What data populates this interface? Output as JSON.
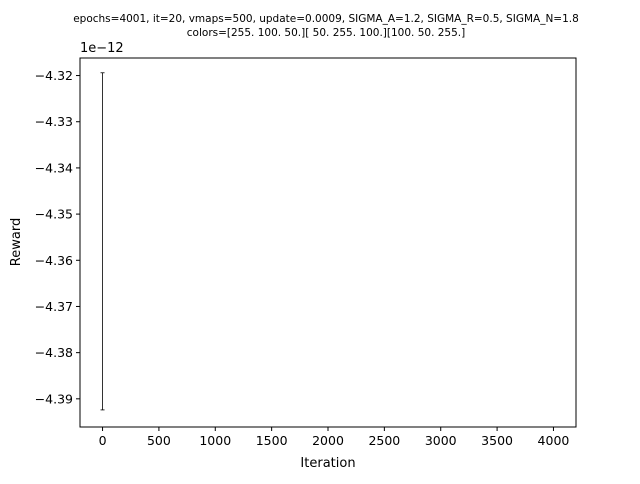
{
  "chart_data": {
    "type": "line",
    "title_lines": [
      "epochs=4001, it=20, vmaps=500, update=0.0009, SIGMA_A=1.2, SIGMA_R=0.5, SIGMA_N=1.8",
      "colors=[255. 100.  50.][ 50. 255. 100.][100.  50. 255.]"
    ],
    "xlabel": "Iteration",
    "ylabel": "Reward",
    "y_offset_label": "1e−12",
    "xlim": [
      -200,
      4200
    ],
    "ylim": [
      -4.3961,
      -4.3162
    ],
    "x_ticks": [
      0,
      500,
      1000,
      1500,
      2000,
      2500,
      3000,
      3500,
      4000
    ],
    "x_tick_labels": [
      "0",
      "500",
      "1000",
      "1500",
      "2000",
      "2500",
      "3000",
      "3500",
      "4000"
    ],
    "y_ticks": [
      -4.39,
      -4.38,
      -4.37,
      -4.36,
      -4.35,
      -4.34,
      -4.33,
      -4.32
    ],
    "y_tick_labels": [
      "−4.39",
      "−4.38",
      "−4.37",
      "−4.36",
      "−4.35",
      "−4.34",
      "−4.33",
      "−4.32"
    ],
    "grid": false,
    "series": [
      {
        "x": [
          0
        ],
        "y": [
          -4.3559
        ],
        "error_low": [
          -4.3924
        ],
        "error_high": [
          -4.3194
        ],
        "color": "#000000"
      }
    ]
  }
}
